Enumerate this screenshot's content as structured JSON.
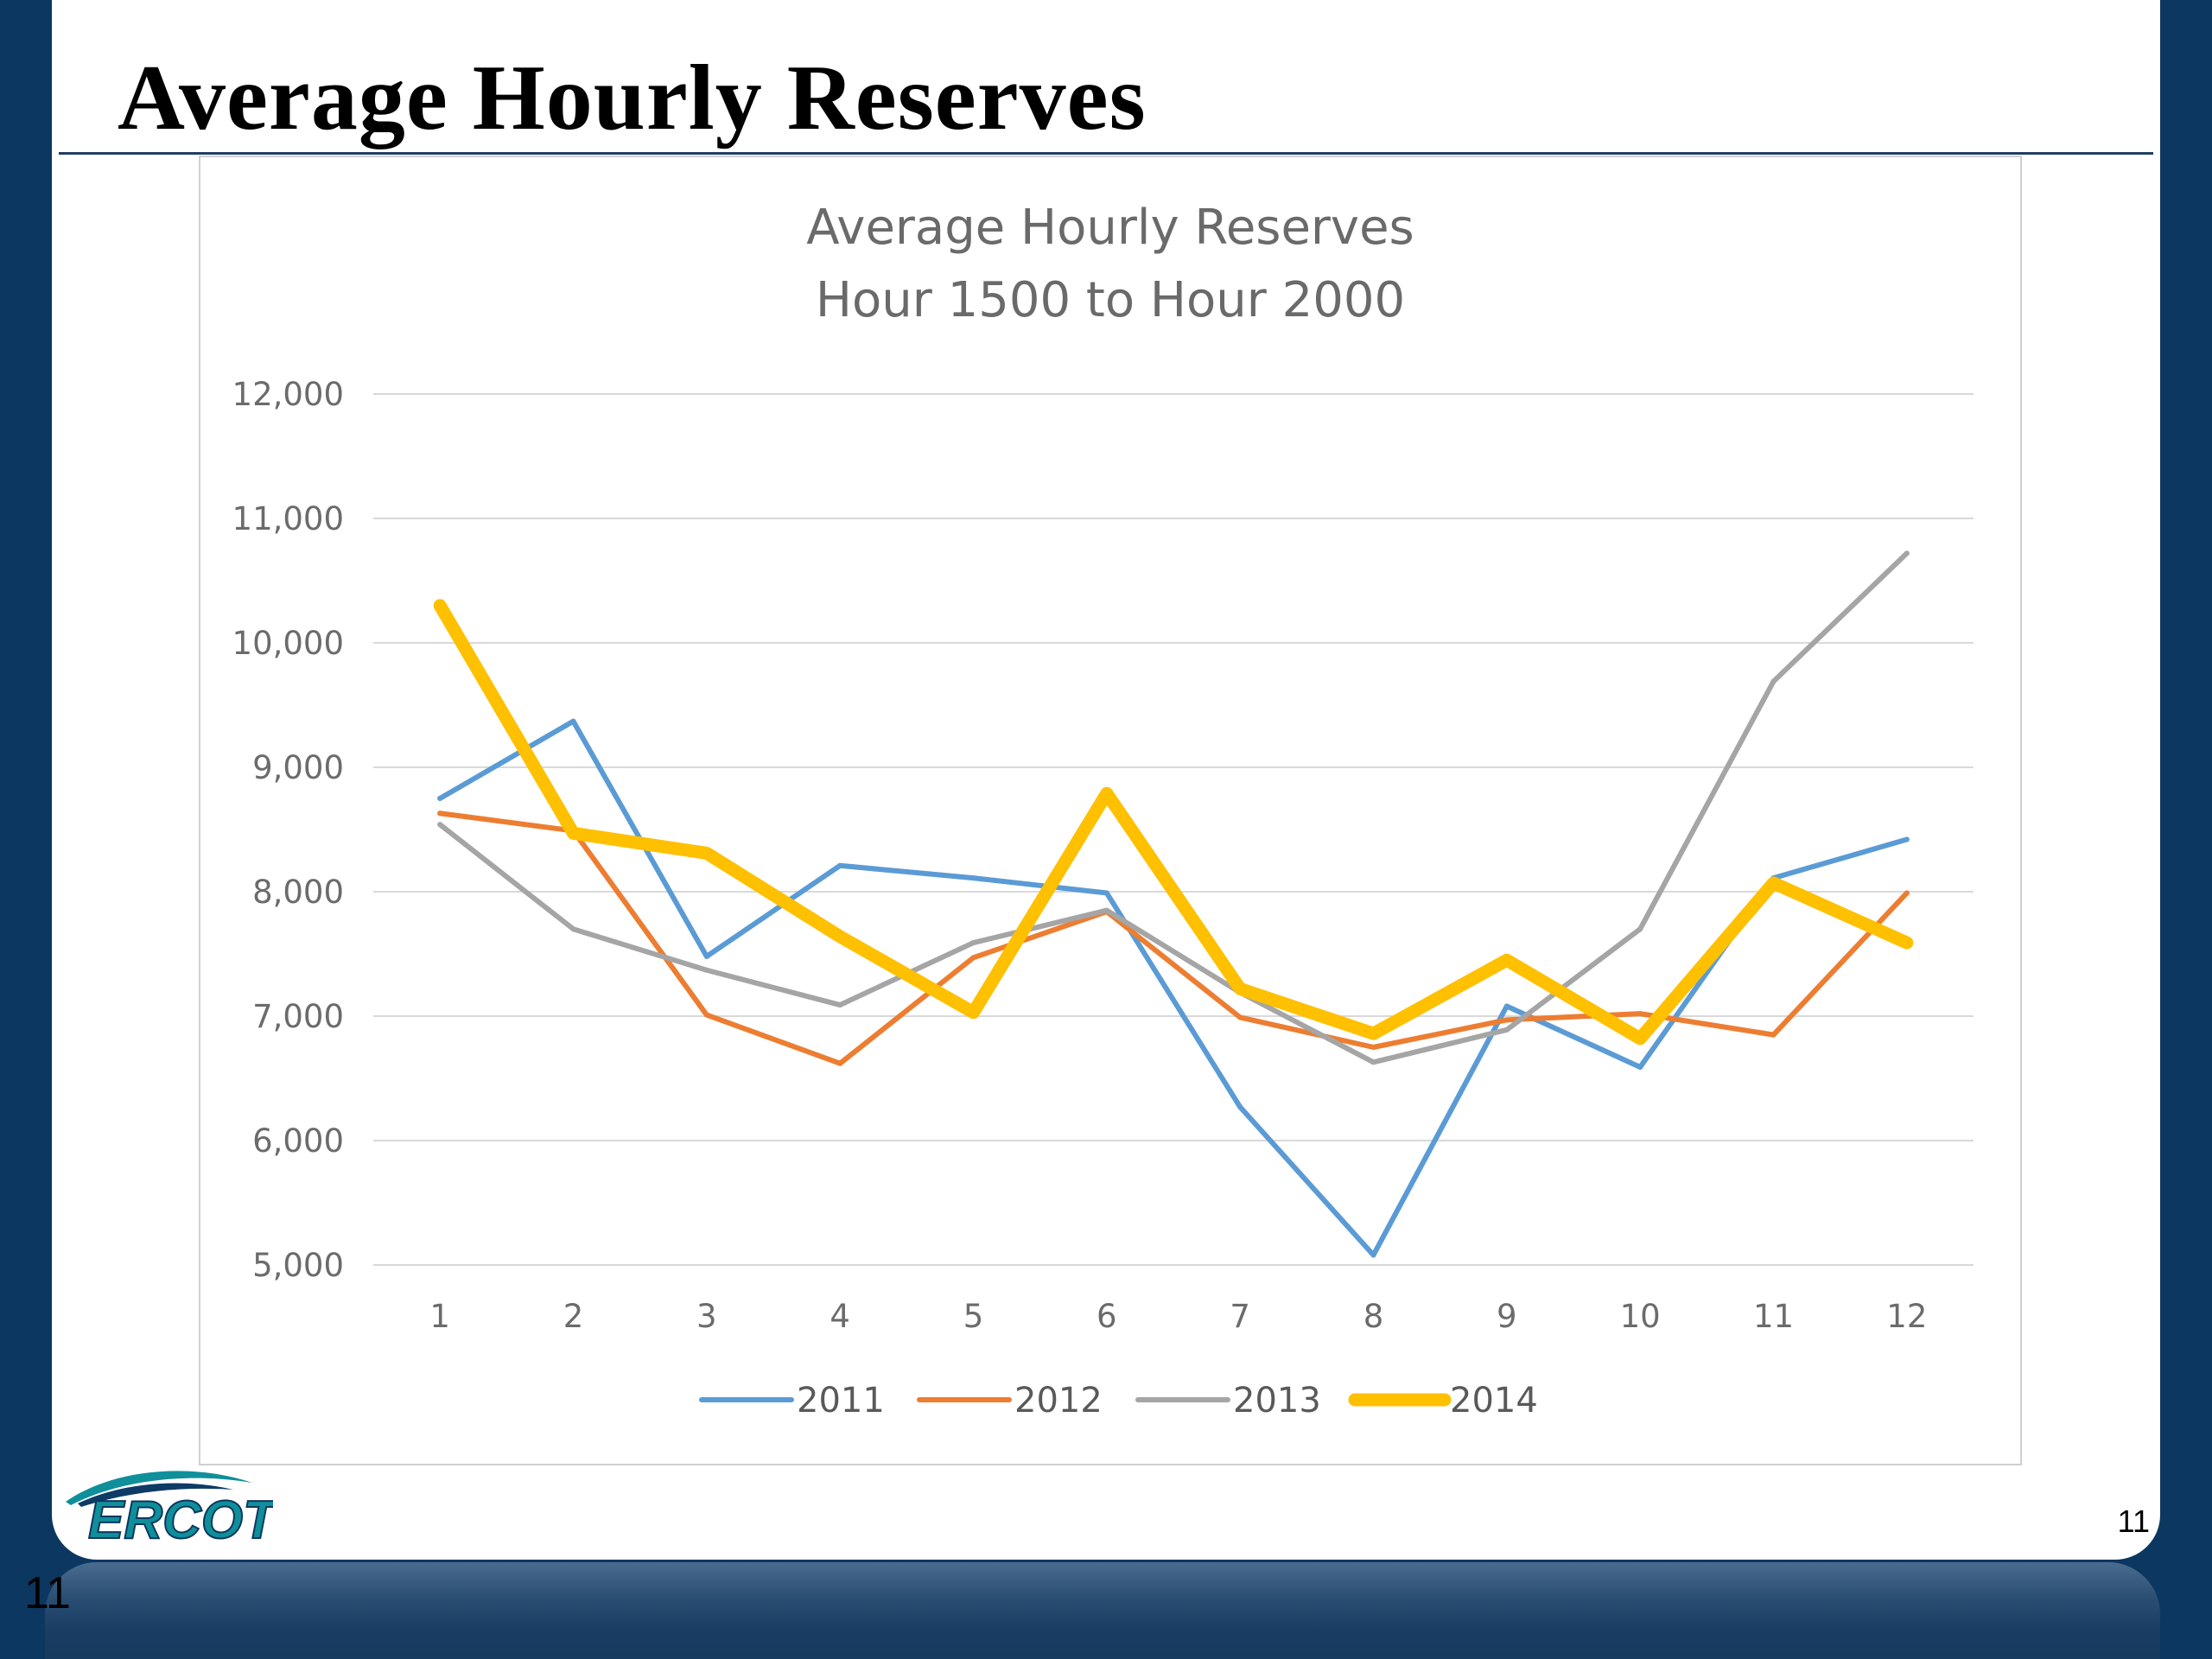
{
  "slide": {
    "title": "Average Hourly Reserves",
    "page_number": "11",
    "page_number_outer": "11",
    "logo_text": "ERCOT"
  },
  "colors": {
    "2011": "#5b9bd5",
    "2012": "#ed7d31",
    "2013": "#a5a5a5",
    "2014": "#ffc000",
    "frame": "#0c3760",
    "logo": "#0f8f9a"
  },
  "chart_data": {
    "type": "line",
    "title_lines": [
      "Average Hourly Reserves",
      "Hour 1500 to Hour 2000"
    ],
    "categories": [
      "1",
      "2",
      "3",
      "4",
      "5",
      "6",
      "7",
      "8",
      "9",
      "10",
      "11",
      "12"
    ],
    "y_tick_labels": [
      "5,000",
      "6,000",
      "7,000",
      "8,000",
      "9,000",
      "10,000",
      "11,000",
      "12,000"
    ],
    "ylim": [
      5000,
      12000
    ],
    "grid": true,
    "legend_position": "bottom",
    "series": [
      {
        "name": "2011",
        "values": [
          8750,
          9370,
          7480,
          8210,
          8110,
          7990,
          6270,
          5080,
          7080,
          6590,
          8110,
          8420
        ]
      },
      {
        "name": "2012",
        "values": [
          8630,
          8490,
          7010,
          6620,
          7470,
          7840,
          6990,
          6750,
          6970,
          7020,
          6850,
          7990
        ]
      },
      {
        "name": "2013",
        "values": [
          8540,
          7700,
          7370,
          7090,
          7590,
          7850,
          7190,
          6630,
          6890,
          7700,
          9690,
          10720
        ]
      },
      {
        "name": "2014",
        "values": [
          10300,
          8470,
          8310,
          7640,
          7030,
          8790,
          7220,
          6860,
          7450,
          6820,
          8070,
          7590
        ]
      }
    ]
  }
}
